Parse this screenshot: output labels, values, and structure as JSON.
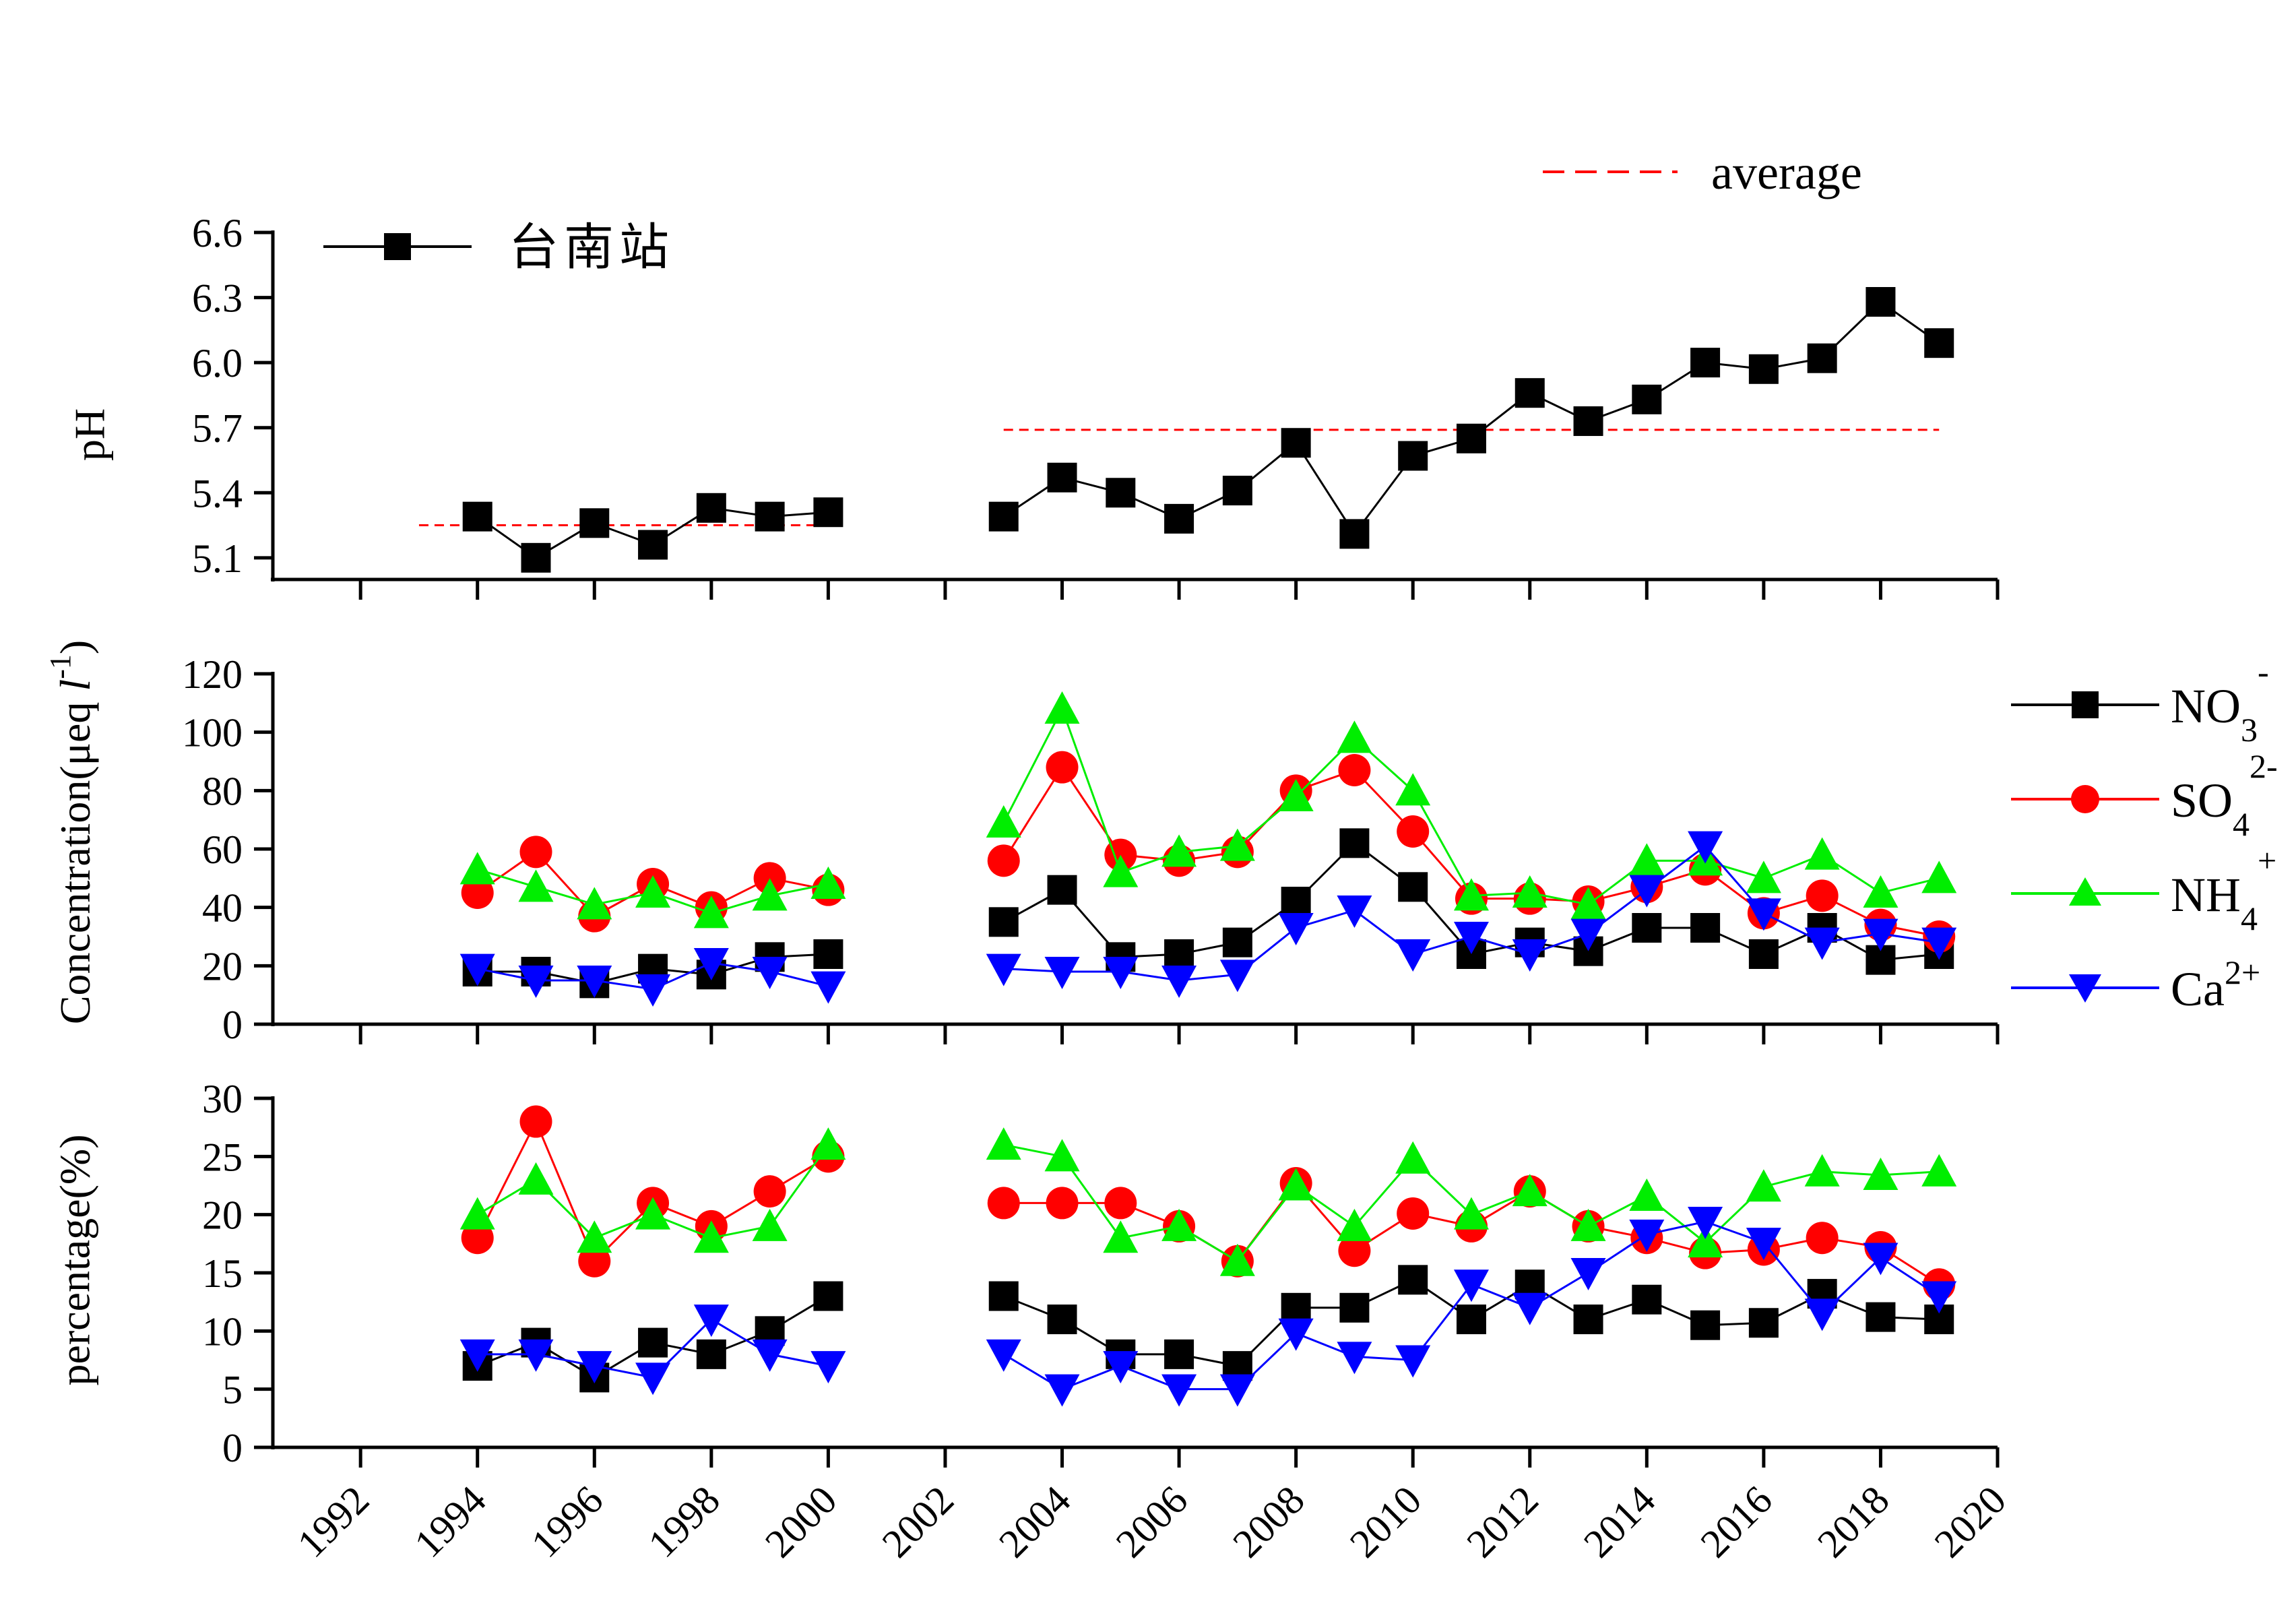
{
  "chart_data": [
    {
      "type": "line",
      "panel": "ph",
      "ylabel": "pH",
      "ylim": [
        5.0,
        6.6
      ],
      "yticks": [
        5.1,
        5.4,
        5.7,
        6.0,
        6.3,
        6.6
      ],
      "ytick_labels": [
        "5.1",
        "5.4",
        "5.7",
        "6.0",
        "6.3",
        "6.6"
      ],
      "xlim": [
        1990.5,
        2020
      ],
      "x": [
        1994,
        1995,
        1996,
        1997,
        1998,
        1999,
        2000,
        2003,
        2004,
        2005,
        2006,
        2007,
        2008,
        2009,
        2010,
        2011,
        2012,
        2013,
        2014,
        2015,
        2016,
        2017,
        2018,
        2019
      ],
      "series": [
        {
          "name": "台南站",
          "color": "#000000",
          "marker": "square",
          "values": [
            5.29,
            5.1,
            5.26,
            5.16,
            5.33,
            5.29,
            5.31,
            5.29,
            5.47,
            5.4,
            5.28,
            5.41,
            5.63,
            5.21,
            5.57,
            5.65,
            5.86,
            5.73,
            5.83,
            6.0,
            5.97,
            6.02,
            6.28,
            6.09
          ]
        }
      ],
      "averages": [
        {
          "name": "average",
          "color": "#ff0000",
          "x_start": 1993,
          "x_end": 2000,
          "value": 5.25
        },
        {
          "name": "average",
          "color": "#ff0000",
          "x_start": 2003,
          "x_end": 2019,
          "value": 5.69
        }
      ],
      "legend": [
        "台南站",
        "average"
      ]
    },
    {
      "type": "line",
      "panel": "concentration",
      "ylabel": "Concentration(μeq l-1)",
      "ylim": [
        0,
        120
      ],
      "yticks": [
        0,
        20,
        40,
        60,
        80,
        100,
        120
      ],
      "ytick_labels": [
        "0",
        "20",
        "40",
        "60",
        "80",
        "100",
        "120"
      ],
      "xlim": [
        1990.5,
        2020
      ],
      "x": [
        1994,
        1995,
        1996,
        1997,
        1998,
        1999,
        2000,
        2003,
        2004,
        2005,
        2006,
        2007,
        2008,
        2009,
        2010,
        2011,
        2012,
        2013,
        2014,
        2015,
        2016,
        2017,
        2018,
        2019
      ],
      "series": [
        {
          "name": "NO3-",
          "color": "#000000",
          "marker": "square",
          "values": [
            18,
            18,
            14,
            19,
            17,
            23,
            24,
            35,
            46,
            23,
            24,
            28,
            42,
            62,
            47,
            24,
            28,
            25,
            33,
            33,
            24,
            33,
            22,
            24
          ]
        },
        {
          "name": "SO42-",
          "color": "#ff0000",
          "marker": "circle",
          "values": [
            45,
            59,
            37,
            48,
            40,
            50,
            46,
            56,
            88,
            58,
            56,
            59,
            80,
            87,
            66,
            43,
            43,
            42,
            47,
            53,
            38,
            44,
            34,
            30
          ]
        },
        {
          "name": "NH4+",
          "color": "#00ee00",
          "marker": "triangle-up",
          "values": [
            53,
            47,
            41,
            45,
            38,
            44,
            48,
            69,
            108,
            52,
            59,
            61,
            78,
            98,
            80,
            44,
            45,
            41,
            56,
            56,
            50,
            58,
            45,
            50
          ]
        },
        {
          "name": "Ca2+",
          "color": "#0000ff",
          "marker": "triangle-down",
          "values": [
            19,
            15,
            15,
            12,
            21,
            18,
            13,
            19,
            18,
            18,
            15,
            17,
            33,
            39,
            24,
            30,
            24,
            31,
            46,
            61,
            38,
            28,
            31,
            28
          ]
        }
      ],
      "legend": [
        "NO3-",
        "SO42-",
        "NH4+",
        "Ca2+"
      ]
    },
    {
      "type": "line",
      "panel": "percentage",
      "ylabel": "percentage(%)",
      "ylim": [
        0,
        30
      ],
      "yticks": [
        0,
        5,
        10,
        15,
        20,
        25,
        30
      ],
      "ytick_labels": [
        "0",
        "5",
        "10",
        "15",
        "20",
        "25",
        "30"
      ],
      "xlim": [
        1990.5,
        2020
      ],
      "x": [
        1994,
        1995,
        1996,
        1997,
        1998,
        1999,
        2000,
        2003,
        2004,
        2005,
        2006,
        2007,
        2008,
        2009,
        2010,
        2011,
        2012,
        2013,
        2014,
        2015,
        2016,
        2017,
        2018,
        2019
      ],
      "xticks": [
        1992,
        1994,
        1996,
        1998,
        2000,
        2002,
        2004,
        2006,
        2008,
        2010,
        2012,
        2014,
        2016,
        2018,
        2020
      ],
      "xtick_labels": [
        "1992",
        "1994",
        "1996",
        "1998",
        "2000",
        "2002",
        "2004",
        "2006",
        "2008",
        "2010",
        "2012",
        "2014",
        "2016",
        "2018",
        "2020"
      ],
      "series": [
        {
          "name": "NO3-",
          "color": "#000000",
          "marker": "square",
          "values": [
            7,
            9,
            6,
            9,
            8,
            10,
            13,
            13,
            11,
            8,
            8,
            7,
            12,
            12,
            14.4,
            11,
            14,
            11,
            12.7,
            10.5,
            10.7,
            13.2,
            11.2,
            11
          ]
        },
        {
          "name": "SO42-",
          "color": "#ff0000",
          "marker": "circle",
          "values": [
            18,
            28,
            16,
            21,
            19,
            22,
            25,
            21,
            21,
            21,
            19,
            16,
            22.7,
            16.9,
            20.1,
            19,
            22,
            19,
            18,
            16.7,
            17,
            18,
            17.2,
            14
          ]
        },
        {
          "name": "NH4+",
          "color": "#00ee00",
          "marker": "triangle-up",
          "values": [
            20,
            23,
            18,
            20,
            18,
            19,
            26,
            26,
            25,
            18,
            19,
            16,
            22.5,
            19,
            24.8,
            20,
            22,
            19,
            21.6,
            17.6,
            22.4,
            23.7,
            23.4,
            23.7
          ]
        },
        {
          "name": "Ca2+",
          "color": "#0000ff",
          "marker": "triangle-down",
          "values": [
            8,
            8,
            7,
            6,
            11,
            8,
            7,
            8,
            5,
            7,
            5,
            5,
            9.8,
            7.8,
            7.5,
            14,
            12,
            15,
            18.3,
            19.4,
            17.6,
            11.5,
            16.3,
            13
          ]
        }
      ]
    }
  ],
  "legend_labels": {
    "station": "台南站",
    "average": "average",
    "no3_base": "NO",
    "no3_sub": "3",
    "no3_sup": "-",
    "so4_base": "SO",
    "so4_sub": "4",
    "so4_sup": "2-",
    "nh4_base": "NH",
    "nh4_sub": "4",
    "nh4_sup": "+",
    "ca_base": "Ca",
    "ca_sup": "2+"
  },
  "axis_titles": {
    "ph": "pH",
    "conc_main": "Concentration(μeq ",
    "conc_unit": "l",
    "conc_sup": "-1",
    "conc_close": ")",
    "pct": "percentage(%)"
  }
}
